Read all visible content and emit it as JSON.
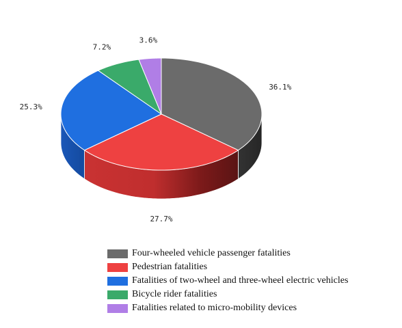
{
  "chart_data": {
    "type": "pie",
    "title": "",
    "style": "3d",
    "start": "12 o'clock",
    "direction": "clockwise",
    "legend_position": "bottom",
    "slices": [
      {
        "label": "Four-wheeled vehicle passenger fatalities",
        "value": 36.1,
        "value_label": "36.1%",
        "color": "#6b6b6b"
      },
      {
        "label": "Pedestrian fatalities",
        "value": 27.7,
        "value_label": "27.7%",
        "color": "#ee4141"
      },
      {
        "label": "Fatalities of two-wheel and three-wheel electric vehicles",
        "value": 25.3,
        "value_label": "25.3%",
        "color": "#1f6fe0"
      },
      {
        "label": "Bicycle rider fatalities",
        "value": 7.2,
        "value_label": "7.2%",
        "color": "#3aaa6a"
      },
      {
        "label": "Fatalities related to micro-mobility devices",
        "value": 3.6,
        "value_label": "3.6%",
        "color": "#b07ee6"
      }
    ]
  }
}
